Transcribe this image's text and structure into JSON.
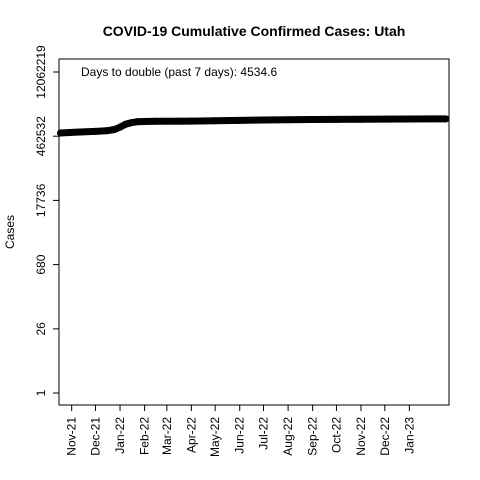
{
  "chart_data": {
    "type": "line",
    "title": "COVID-19 Cumulative Confirmed Cases: Utah",
    "xlabel": "",
    "ylabel": "Cases",
    "annotation": "Days to double (past 7 days): 4534.6",
    "y_scale": "log",
    "ylim": [
      1,
      12062219
    ],
    "y_ticks": [
      1,
      26,
      680,
      17736,
      462532,
      12062219
    ],
    "y_tick_labels": [
      "1",
      "26",
      "680",
      "17736",
      "462532",
      "12062219"
    ],
    "x_tick_labels": [
      "Nov-21",
      "Dec-21",
      "Jan-22",
      "Feb-22",
      "Mar-22",
      "Apr-22",
      "May-22",
      "Jun-22",
      "Jul-22",
      "Aug-22",
      "Sep-22",
      "Oct-22",
      "Nov-22",
      "Dec-22",
      "Jan-23"
    ],
    "x_tick_dates": [
      "2021-11-01",
      "2021-12-01",
      "2022-01-01",
      "2022-02-01",
      "2022-03-01",
      "2022-04-01",
      "2022-05-01",
      "2022-06-01",
      "2022-07-01",
      "2022-08-01",
      "2022-09-01",
      "2022-10-01",
      "2022-11-01",
      "2022-12-01",
      "2023-01-01"
    ],
    "xlim": [
      "2021-10-16",
      "2023-02-20"
    ],
    "grid": false,
    "legend": "none",
    "line_color": "#000000",
    "series": [
      {
        "x": [
          "2021-10-18",
          "2021-11-01",
          "2021-11-15",
          "2021-12-01",
          "2021-12-15",
          "2021-12-25",
          "2022-01-01",
          "2022-01-08",
          "2022-01-15",
          "2022-01-22",
          "2022-02-01",
          "2022-02-15",
          "2022-03-01",
          "2022-04-01",
          "2022-05-01",
          "2022-06-01",
          "2022-07-01",
          "2022-08-01",
          "2022-09-01",
          "2022-10-01",
          "2022-11-01",
          "2022-12-01",
          "2023-01-01",
          "2023-02-01",
          "2023-02-16"
        ],
        "y": [
          545000,
          560000,
          575000,
          590000,
          610000,
          650000,
          730000,
          850000,
          920000,
          960000,
          975000,
          985000,
          990000,
          995000,
          1010000,
          1030000,
          1055000,
          1070000,
          1080000,
          1088000,
          1095000,
          1102000,
          1108000,
          1112000,
          1114000
        ]
      }
    ]
  }
}
